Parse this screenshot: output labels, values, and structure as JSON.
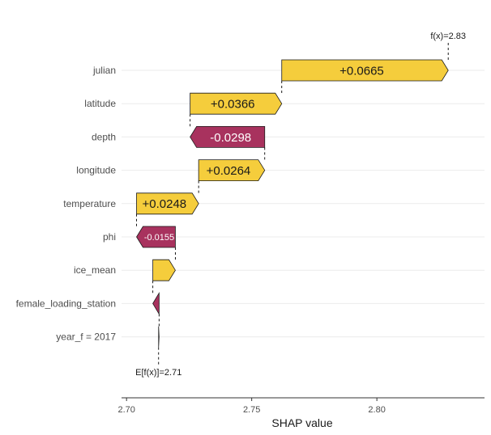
{
  "chart_data": {
    "type": "waterfall",
    "xlabel": "SHAP value",
    "base_value": 2.71,
    "base_label": "E[f(x)]=2.71",
    "final_value": 2.83,
    "final_label": "f(x)=2.83",
    "xlim": [
      2.698,
      2.843
    ],
    "xticks": [
      2.7,
      2.75,
      2.8
    ],
    "xtick_labels": [
      "2.70",
      "2.75",
      "2.80"
    ],
    "grid": "horizontal",
    "colors": {
      "positive": "#f5cd3c",
      "negative": "#a8325e",
      "connector": "#000000"
    },
    "features": [
      {
        "name": "julian",
        "start": 2.762,
        "end": 2.8285,
        "label": "+0.0665"
      },
      {
        "name": "latitude",
        "start": 2.7254,
        "end": 2.762,
        "label": "+0.0366"
      },
      {
        "name": "depth",
        "start": 2.7552,
        "end": 2.7254,
        "label": "-0.0298"
      },
      {
        "name": "longitude",
        "start": 2.7288,
        "end": 2.7552,
        "label": "+0.0264"
      },
      {
        "name": "temperature",
        "start": 2.704,
        "end": 2.7288,
        "label": "+0.0248"
      },
      {
        "name": "phi",
        "start": 2.7195,
        "end": 2.704,
        "label": "-0.0155"
      },
      {
        "name": "ice_mean",
        "start": 2.7105,
        "end": 2.7195,
        "label": ""
      },
      {
        "name": "female_loading_station",
        "start": 2.713,
        "end": 2.7105,
        "label": ""
      },
      {
        "name": "year_f = 2017",
        "start": 2.7128,
        "end": 2.713,
        "label": ""
      }
    ]
  }
}
